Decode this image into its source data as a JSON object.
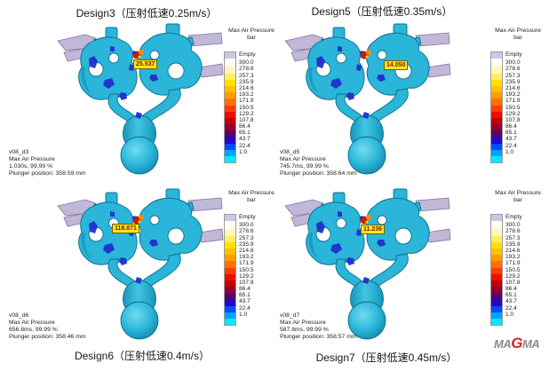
{
  "legend": {
    "title_line1": "Max Air Pressure",
    "title_line2": "bar",
    "entries": [
      {
        "label": "Empty",
        "color": "#cfc6e6"
      },
      {
        "label": "300.0",
        "color": "#fffef0"
      },
      {
        "label": "278.6",
        "color": "#fff8bc"
      },
      {
        "label": "257.3",
        "color": "#fff05c"
      },
      {
        "label": "235.9",
        "color": "#ffe000"
      },
      {
        "label": "214.6",
        "color": "#ffc100"
      },
      {
        "label": "193.2",
        "color": "#ff9c00"
      },
      {
        "label": "171.9",
        "color": "#ff7000"
      },
      {
        "label": "150.5",
        "color": "#ff3c00"
      },
      {
        "label": "129.2",
        "color": "#ee0e00"
      },
      {
        "label": "107.8",
        "color": "#c20000"
      },
      {
        "label": "86.4",
        "color": "#93002e"
      },
      {
        "label": "65.1",
        "color": "#5a0066"
      },
      {
        "label": "43.7",
        "color": "#2408c8"
      },
      {
        "label": "22.4",
        "color": "#004cff"
      },
      {
        "label": "1.0",
        "color": "#00a2ff"
      }
    ],
    "below_min_color": "#00eaff"
  },
  "panels": [
    {
      "title": "Design3（压射低速0.25m/s）",
      "max_label": "25.537",
      "info": {
        "model": "v08_d3",
        "result": "Max Air Pressure",
        "time": "1.030s, 99.99 %",
        "plunger": "Plunger position: 358.59 mm"
      }
    },
    {
      "title": "Design5（压射低速0.35m/s）",
      "max_label": "14.050",
      "info": {
        "model": "v08_d5",
        "result": "Max Air Pressure",
        "time": "745.7ms, 99.99 %",
        "plunger": "Plunger position: 358.64 mm"
      }
    },
    {
      "title": "Design6（压射低速0.4m/s）",
      "max_label": "118.871",
      "info": {
        "model": "v08_d6",
        "result": "Max Air Pressure",
        "time": "656.8ms, 99.99 %",
        "plunger": "Plunger position: 358.46 mm"
      }
    },
    {
      "title": "Design7（压射低速0.45m/s）",
      "max_label": "11.236",
      "info": {
        "model": "v08_d7",
        "result": "Max Air Pressure",
        "time": "587.8ms, 99.99 %",
        "plunger": "Plunger position: 358.57 mm"
      }
    }
  ],
  "logo": {
    "left": "MA",
    "g": "G",
    "right": "MA"
  },
  "chart_data": {
    "type": "heatmap",
    "title": "Max Air Pressure (bar) comparison of gating designs vs slow-shot speed",
    "colorbar": {
      "title": "Max Air Pressure",
      "unit": "bar",
      "levels": [
        "Empty",
        300.0,
        278.6,
        257.3,
        235.9,
        214.6,
        193.2,
        171.9,
        150.5,
        129.2,
        107.8,
        86.4,
        65.1,
        43.7,
        22.4,
        1.0
      ]
    },
    "panels": [
      {
        "design": "Design3",
        "slow_shot_speed_m_s": 0.25,
        "case": "v08_d3",
        "max_air_pressure_bar": 25.537,
        "time": "1.030s",
        "fill_percent": 99.99,
        "plunger_position_mm": 358.59
      },
      {
        "design": "Design5",
        "slow_shot_speed_m_s": 0.35,
        "case": "v08_d5",
        "max_air_pressure_bar": 14.05,
        "time": "745.7ms",
        "fill_percent": 99.99,
        "plunger_position_mm": 358.64
      },
      {
        "design": "Design6",
        "slow_shot_speed_m_s": 0.4,
        "case": "v08_d6",
        "max_air_pressure_bar": 118.871,
        "time": "656.8ms",
        "fill_percent": 99.99,
        "plunger_position_mm": 358.46
      },
      {
        "design": "Design7",
        "slow_shot_speed_m_s": 0.45,
        "case": "v08_d7",
        "max_air_pressure_bar": 11.236,
        "time": "587.8ms",
        "fill_percent": 99.99,
        "plunger_position_mm": 358.57
      }
    ]
  }
}
